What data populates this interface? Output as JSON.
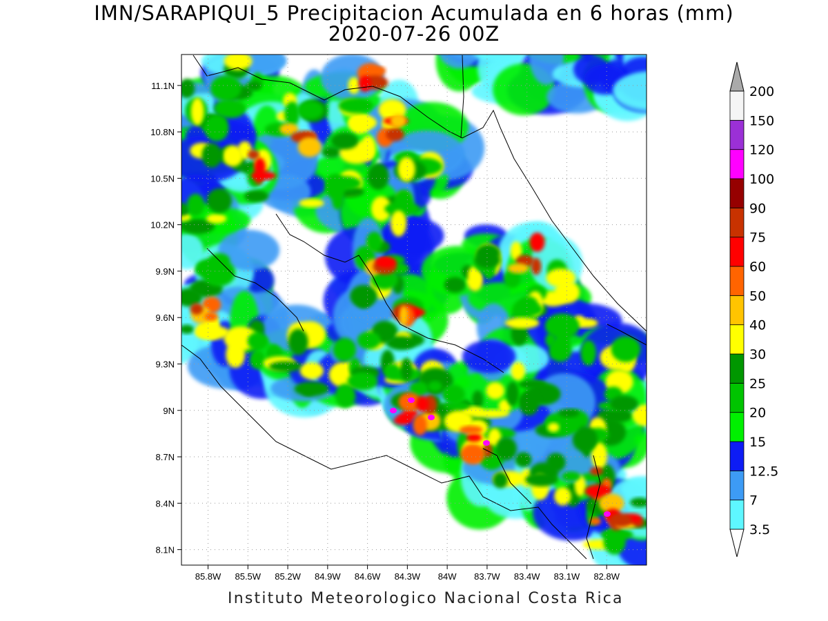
{
  "title": {
    "line1": "IMN/SARAPIQUI_5 Precipitacion Acumulada en 6 horas (mm)",
    "line2": "2020-07-26 00Z"
  },
  "footer": "Instituto Meteorologico Nacional Costa Rica",
  "map": {
    "lon_range": [
      -86.0,
      -82.5
    ],
    "lat_range": [
      8.0,
      11.3
    ],
    "lon_ticks": [
      "85.8W",
      "85.5W",
      "85.2W",
      "84.9W",
      "84.6W",
      "84.3W",
      "84W",
      "83.7W",
      "83.4W",
      "83.1W",
      "82.8W"
    ],
    "lon_values": [
      -85.8,
      -85.5,
      -85.2,
      -84.9,
      -84.6,
      -84.3,
      -84.0,
      -83.7,
      -83.4,
      -83.1,
      -82.8
    ],
    "lat_ticks": [
      "8.1N",
      "8.4N",
      "8.7N",
      "9N",
      "9.3N",
      "9.6N",
      "9.9N",
      "10.2N",
      "10.5N",
      "10.8N",
      "11.1N"
    ],
    "lat_values": [
      8.1,
      8.4,
      8.7,
      9.0,
      9.3,
      9.6,
      9.9,
      10.2,
      10.5,
      10.8,
      11.1
    ],
    "grid": "dotted"
  },
  "colorbar": {
    "labels": [
      "3.5",
      "7",
      "12.5",
      "15",
      "20",
      "25",
      "30",
      "40",
      "50",
      "60",
      "75",
      "90",
      "100",
      "120",
      "150",
      "200"
    ],
    "colors": [
      "#ffffff",
      "#5ef7ff",
      "#3d9bf5",
      "#0d1cf5",
      "#00f000",
      "#00c400",
      "#009700",
      "#ffff00",
      "#ffc400",
      "#ff6400",
      "#ff0000",
      "#c83200",
      "#960000",
      "#ff00ff",
      "#9b30d6",
      "#f5f5f5",
      "#aaaaaa"
    ]
  }
}
